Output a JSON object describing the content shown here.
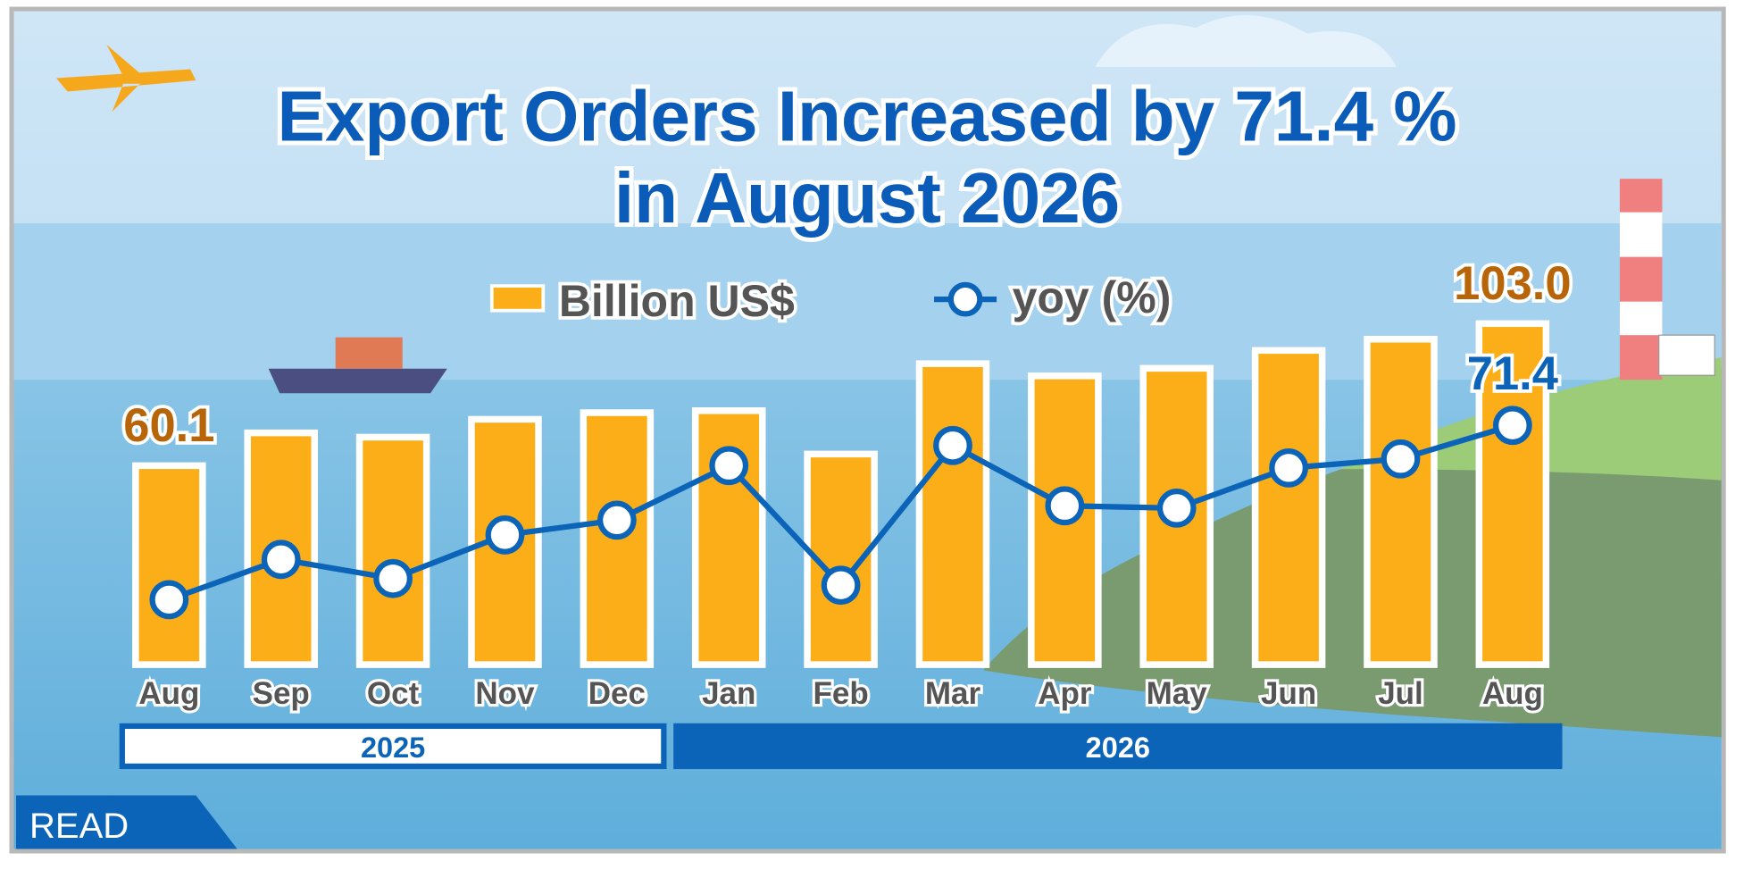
{
  "chart_data": {
    "type": "bar-line",
    "title": [
      "Export Orders Increased by 71.4 %",
      "in August 2026"
    ],
    "categories": [
      "Aug",
      "Sep",
      "Oct",
      "Nov",
      "Dec",
      "Jan",
      "Feb",
      "Mar",
      "Apr",
      "May",
      "Jun",
      "Jul",
      "Aug"
    ],
    "year_groups": [
      {
        "label": "2025",
        "count": 5
      },
      {
        "label": "2026",
        "count": 8
      }
    ],
    "series": [
      {
        "name": "Billion US$",
        "color": "#fbae17",
        "values": [
          60.1,
          70.0,
          68.7,
          74.1,
          76.1,
          76.7,
          63.6,
          90.9,
          87.2,
          89.5,
          94.9,
          98.3,
          103.0
        ],
        "value_labels": [
          "60.1",
          null,
          null,
          null,
          null,
          null,
          null,
          null,
          null,
          null,
          null,
          null,
          "103.0"
        ]
      },
      {
        "name": "yoy (%)",
        "color": "#0b64b8",
        "axis": "y2",
        "values": [
          19.4,
          31.4,
          25.7,
          38.7,
          43.1,
          59.4,
          23.7,
          65.4,
          47.4,
          46.7,
          58.7,
          61.4,
          71.4
        ],
        "value_labels": [
          null,
          null,
          null,
          null,
          null,
          null,
          null,
          null,
          null,
          null,
          null,
          null,
          "71.4"
        ]
      }
    ],
    "ylim": [
      0,
      167
    ],
    "y2lim": [
      0,
      165
    ],
    "button": "READ"
  }
}
